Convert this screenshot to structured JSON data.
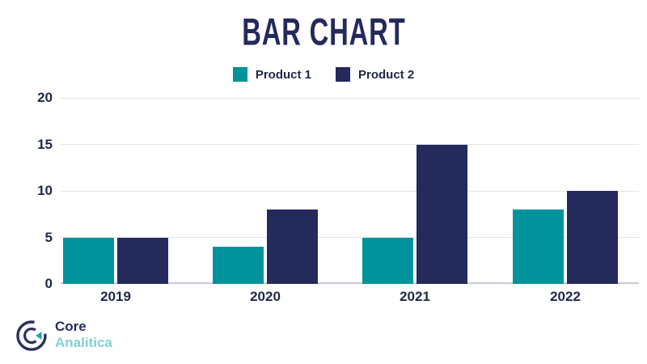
{
  "chart_data": {
    "type": "bar",
    "title": "BAR CHART",
    "title_color": "#252A5C",
    "categories": [
      "2019",
      "2020",
      "2021",
      "2022"
    ],
    "series": [
      {
        "name": "Product 1",
        "color": "#00939B",
        "values": [
          5,
          4,
          5,
          8
        ]
      },
      {
        "name": "Product 2",
        "color": "#252A5C",
        "values": [
          5,
          8,
          15,
          10
        ]
      }
    ],
    "xlabel": "",
    "ylabel": "",
    "ylim": [
      0,
      20
    ],
    "yticks": [
      0,
      5,
      10,
      15,
      20
    ],
    "grid": "horizontal",
    "legend_position": "top-center"
  },
  "logo": {
    "text_primary": "Core",
    "text_secondary": "Analitica",
    "primary_color": "#272D5E",
    "secondary_color": "#85D0D6",
    "icon_accent_color": "#1BA8B0"
  }
}
